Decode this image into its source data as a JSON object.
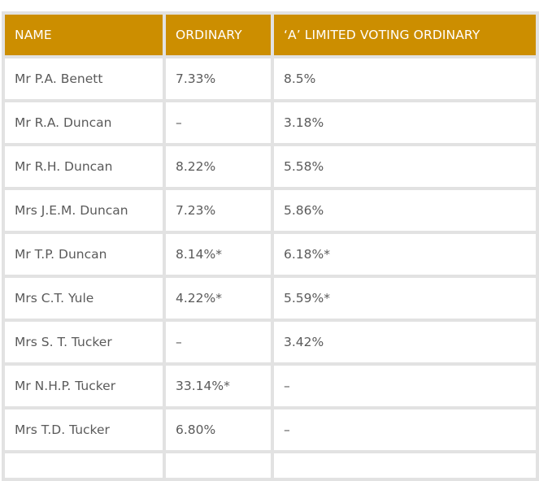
{
  "table": {
    "headers": [
      "NAME",
      "ORDINARY",
      "‘A’ LIMITED VOTING ORDINARY"
    ],
    "rows": [
      [
        "Mr P.A. Benett",
        "7.33%",
        "8.5%"
      ],
      [
        "Mr R.A. Duncan",
        "–",
        "3.18%"
      ],
      [
        "Mr R.H. Duncan",
        "8.22%",
        "5.58%"
      ],
      [
        "Mrs J.E.M. Duncan",
        "7.23%",
        "5.86%"
      ],
      [
        "Mr T.P. Duncan",
        "8.14%*",
        "6.18%*"
      ],
      [
        "Mrs C.T. Yule",
        "4.22%*",
        "5.59%*"
      ],
      [
        "Mrs S. T. Tucker",
        "–",
        "3.42%"
      ],
      [
        "Mr N.H.P. Tucker",
        "33.14%*",
        "–"
      ],
      [
        "Mrs T.D. Tucker",
        "6.80%",
        "–"
      ],
      [
        "",
        "",
        ""
      ]
    ]
  },
  "colors": {
    "header_bg": "#cc8e00",
    "header_text": "#ffffff",
    "border": "#e2e2e2",
    "cell_text": "#5a5a5a"
  }
}
